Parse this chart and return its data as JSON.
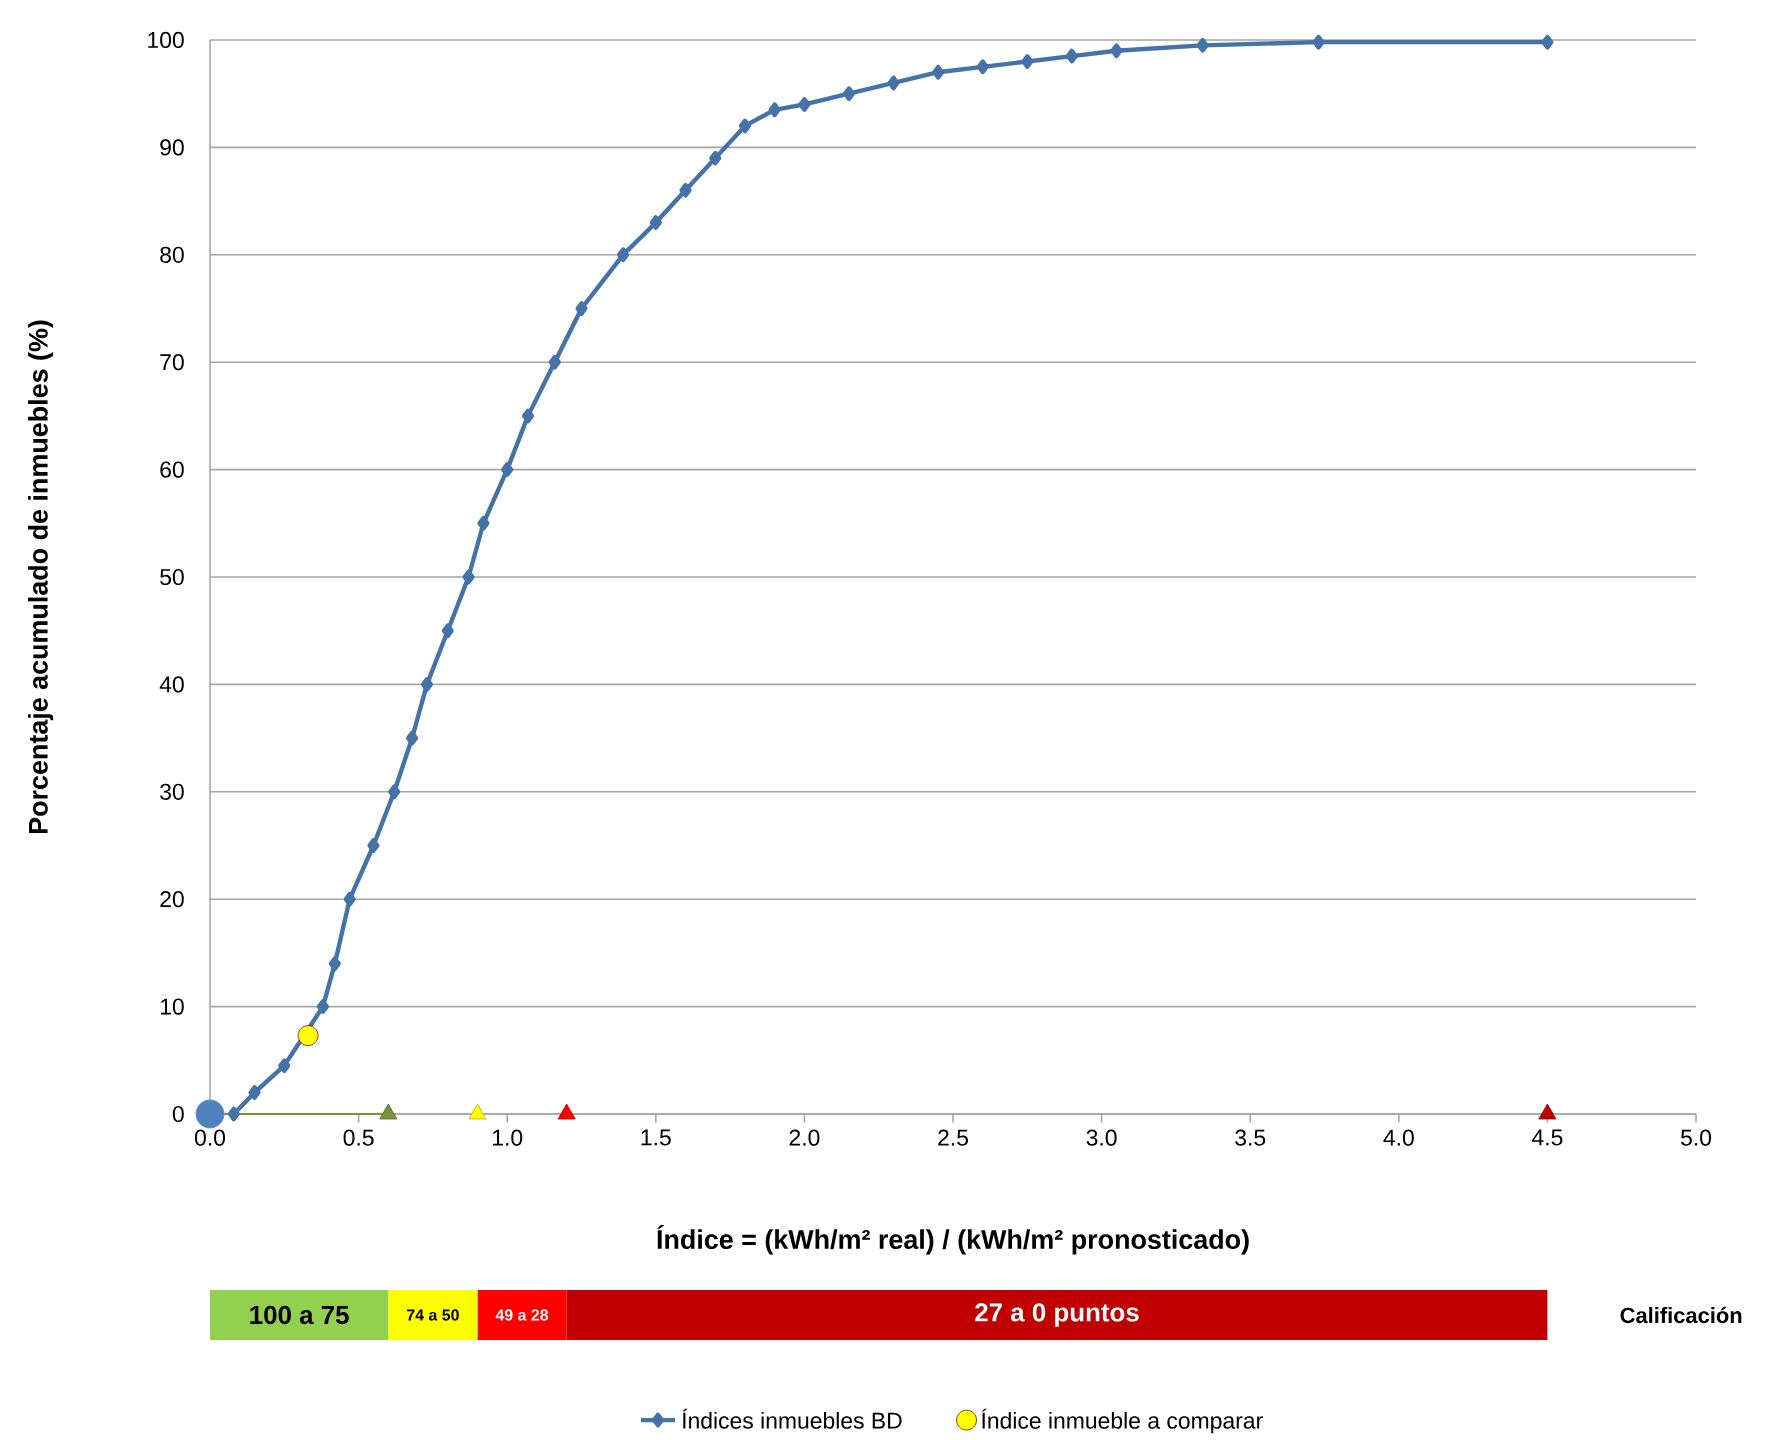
{
  "chart_data": [
    {
      "type": "line",
      "xlabel": "Índice = (kWh/m² real) / (kWh/m² pronosticado)",
      "ylabel": "Porcentaje acumulado de inmuebles (%)",
      "xlim": [
        0,
        5
      ],
      "ylim": [
        0,
        100
      ],
      "xticks": [
        {
          "value": 0,
          "label": "0.0"
        },
        {
          "value": 0.5,
          "label": "0.5"
        },
        {
          "value": 1,
          "label": "1.0"
        },
        {
          "value": 1.5,
          "label": "1.5"
        },
        {
          "value": 2,
          "label": "2.0"
        },
        {
          "value": 2.5,
          "label": "2.5"
        },
        {
          "value": 3,
          "label": "3.0"
        },
        {
          "value": 3.5,
          "label": "3.5"
        },
        {
          "value": 4,
          "label": "4.0"
        },
        {
          "value": 4.5,
          "label": "4.5"
        },
        {
          "value": 5,
          "label": "5.0"
        }
      ],
      "yticks": [
        0,
        10,
        20,
        30,
        40,
        50,
        60,
        70,
        80,
        90,
        100
      ],
      "grid": "y",
      "legend": "bottom",
      "series": [
        {
          "name": "Índices inmuebles BD",
          "color": "#4572a7",
          "marker": "diamond",
          "x": [
            0.08,
            0.15,
            0.25,
            0.33,
            0.38,
            0.42,
            0.47,
            0.55,
            0.62,
            0.68,
            0.73,
            0.8,
            0.87,
            0.92,
            1.0,
            1.07,
            1.16,
            1.25,
            1.39,
            1.5,
            1.6,
            1.7,
            1.8,
            1.9,
            2.0,
            2.15,
            2.3,
            2.45,
            2.6,
            2.75,
            2.9,
            3.05,
            3.34,
            3.73,
            4.5
          ],
          "values": [
            0,
            2,
            4.5,
            null,
            10,
            14,
            20,
            25,
            30,
            35,
            40,
            45,
            50,
            55,
            60,
            65,
            70,
            75,
            80,
            83,
            86,
            89,
            92,
            93.5,
            94,
            95,
            96,
            97,
            97.5,
            98,
            98.5,
            99,
            99.5,
            99.8,
            99.8
          ]
        },
        {
          "type": "scatter",
          "name": "Índice inmueble a comparar",
          "color": "#ffff00",
          "marker": "circle",
          "x": [
            0.33
          ],
          "values": [
            7.3
          ]
        },
        {
          "type": "line",
          "color": "#77933c",
          "marker": "none",
          "x": [
            0,
            0.6
          ],
          "values": [
            0,
            0
          ]
        },
        {
          "type": "scatter",
          "marker": "triangle",
          "colors": [
            "#77933c",
            "#ffff00",
            "#ff0000",
            "#c00000"
          ],
          "x": [
            0.6,
            0.9,
            1.2,
            4.5
          ],
          "values": [
            0,
            0,
            0,
            0
          ]
        },
        {
          "type": "scatter",
          "marker": "circle",
          "color": "#4f81bd",
          "x": [
            0
          ],
          "values": [
            0
          ]
        }
      ]
    },
    {
      "type": "bar",
      "orientation": "horizontal",
      "stacked": true,
      "categories": [
        null
      ],
      "xlim": [
        0,
        5
      ],
      "tick_labels": false,
      "series": [
        {
          "name": "100 a 75",
          "color": "#92d050",
          "values": [
            0.6
          ]
        },
        {
          "name": "74 a 50",
          "color": "#ffff00",
          "values": [
            0.3
          ]
        },
        {
          "name": "49 a 28",
          "color": "#ff0000",
          "values": [
            0.3
          ]
        },
        {
          "name": "27 a 0 puntos",
          "color": "#c00000",
          "values": [
            3.3
          ]
        }
      ],
      "annotations": [
        "Calificación"
      ]
    }
  ]
}
